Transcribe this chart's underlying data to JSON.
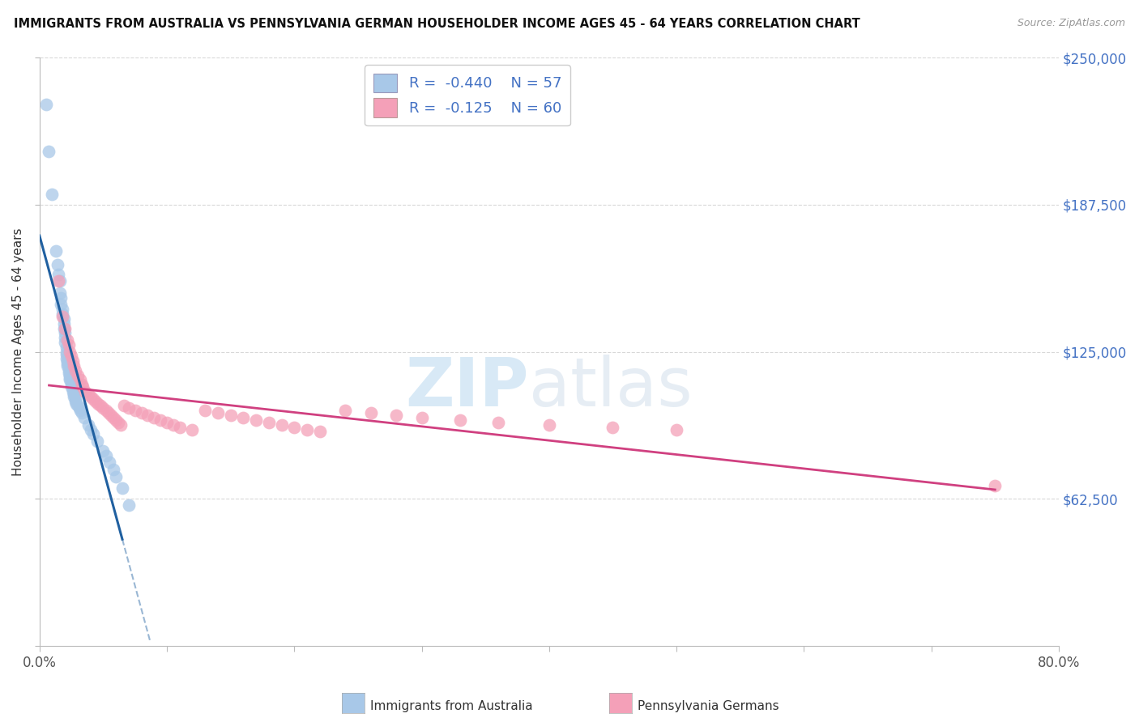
{
  "title": "IMMIGRANTS FROM AUSTRALIA VS PENNSYLVANIA GERMAN HOUSEHOLDER INCOME AGES 45 - 64 YEARS CORRELATION CHART",
  "source": "Source: ZipAtlas.com",
  "ylabel": "Householder Income Ages 45 - 64 years",
  "xlim": [
    0.0,
    0.8
  ],
  "ylim": [
    0,
    250000
  ],
  "background_color": "#ffffff",
  "grid_color": "#d8d8d8",
  "blue_color": "#a8c8e8",
  "pink_color": "#f4a0b8",
  "blue_line_color": "#2060a0",
  "pink_line_color": "#d04080",
  "legend_R_blue": "R =  -0.440",
  "legend_N_blue": "N = 57",
  "legend_R_pink": "R =  -0.125",
  "legend_N_pink": "N = 60",
  "label_blue": "Immigrants from Australia",
  "label_pink": "Pennsylvania Germans",
  "blue_scatter_x": [
    0.005,
    0.007,
    0.01,
    0.013,
    0.014,
    0.015,
    0.016,
    0.016,
    0.017,
    0.017,
    0.018,
    0.018,
    0.019,
    0.019,
    0.019,
    0.02,
    0.02,
    0.02,
    0.021,
    0.021,
    0.021,
    0.021,
    0.022,
    0.022,
    0.022,
    0.023,
    0.023,
    0.023,
    0.024,
    0.024,
    0.024,
    0.025,
    0.025,
    0.025,
    0.026,
    0.026,
    0.027,
    0.027,
    0.028,
    0.028,
    0.029,
    0.03,
    0.031,
    0.032,
    0.033,
    0.035,
    0.038,
    0.04,
    0.042,
    0.045,
    0.05,
    0.052,
    0.055,
    0.058,
    0.06,
    0.065,
    0.07
  ],
  "blue_scatter_y": [
    230000,
    210000,
    192000,
    168000,
    162000,
    158000,
    155000,
    150000,
    148000,
    145000,
    143000,
    141000,
    139000,
    137000,
    135000,
    133000,
    131000,
    129000,
    127000,
    125000,
    124000,
    122000,
    121000,
    120000,
    119000,
    118000,
    117000,
    116000,
    115000,
    114000,
    113000,
    112000,
    111000,
    110000,
    109000,
    108000,
    107000,
    106000,
    105000,
    104000,
    103000,
    102000,
    101000,
    100000,
    99000,
    97000,
    94000,
    92000,
    90000,
    87000,
    83000,
    81000,
    78000,
    75000,
    72000,
    67000,
    60000
  ],
  "pink_scatter_x": [
    0.015,
    0.018,
    0.02,
    0.022,
    0.023,
    0.024,
    0.025,
    0.026,
    0.027,
    0.028,
    0.03,
    0.032,
    0.033,
    0.034,
    0.036,
    0.038,
    0.04,
    0.042,
    0.044,
    0.046,
    0.048,
    0.05,
    0.052,
    0.054,
    0.056,
    0.058,
    0.06,
    0.062,
    0.064,
    0.066,
    0.07,
    0.075,
    0.08,
    0.085,
    0.09,
    0.095,
    0.1,
    0.105,
    0.11,
    0.12,
    0.13,
    0.14,
    0.15,
    0.16,
    0.17,
    0.18,
    0.19,
    0.2,
    0.21,
    0.22,
    0.24,
    0.26,
    0.28,
    0.3,
    0.33,
    0.36,
    0.4,
    0.45,
    0.5,
    0.75
  ],
  "pink_scatter_y": [
    155000,
    140000,
    135000,
    130000,
    128000,
    125000,
    123000,
    121000,
    119000,
    117000,
    115000,
    113000,
    111000,
    110000,
    108000,
    107000,
    106000,
    105000,
    104000,
    103000,
    102000,
    101000,
    100000,
    99000,
    98000,
    97000,
    96000,
    95000,
    94000,
    102000,
    101000,
    100000,
    99000,
    98000,
    97000,
    96000,
    95000,
    94000,
    93000,
    92000,
    100000,
    99000,
    98000,
    97000,
    96000,
    95000,
    94000,
    93000,
    92000,
    91000,
    100000,
    99000,
    98000,
    97000,
    96000,
    95000,
    94000,
    93000,
    92000,
    68000
  ],
  "watermark_zip": "ZIP",
  "watermark_atlas": "atlas",
  "figsize": [
    14.06,
    8.92
  ],
  "dpi": 100
}
